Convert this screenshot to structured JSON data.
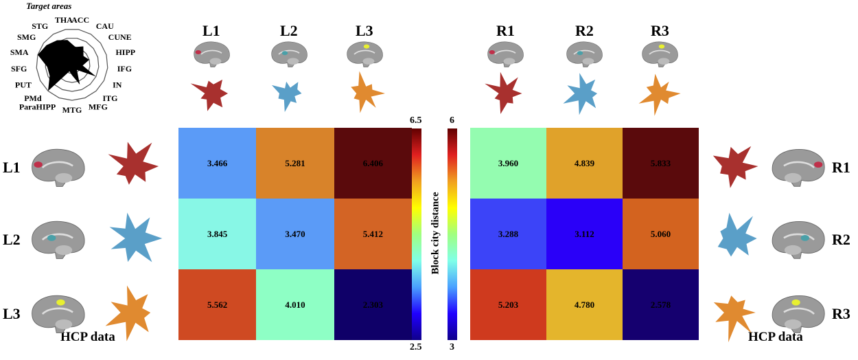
{
  "radar": {
    "title": "Target areas",
    "axes": [
      "ACC",
      "CAU",
      "CUNE",
      "HIPP",
      "IFG",
      "IN",
      "ITG",
      "MFG",
      "MTG",
      "ParaHIPP",
      "PMd",
      "PUT",
      "SFG",
      "SMA",
      "SMG",
      "STG",
      "THA"
    ],
    "values": [
      0.5,
      0.6,
      0.4,
      0.5,
      0.3,
      0.75,
      0.2,
      0.6,
      0.3,
      0.2,
      1.0,
      0.7,
      0.7,
      1.0,
      0.9,
      0.8,
      0.7
    ]
  },
  "top_labels": [
    "L1",
    "L2",
    "L3",
    "R1",
    "R2",
    "R3"
  ],
  "left_labels": [
    "L1",
    "L2",
    "L3"
  ],
  "right_labels": [
    "R1",
    "R2",
    "R3"
  ],
  "region_colors": {
    "1": "#a8302e",
    "2": "#5a9fc8",
    "3": "#e08a30"
  },
  "highlight_colors": {
    "1": "#c0304a",
    "2": "#4aa0a8",
    "3": "#e8f030"
  },
  "footer": {
    "left": "HCP data",
    "right": "HCP data"
  },
  "chart_data": [
    {
      "type": "heatmap",
      "rows": [
        "L1",
        "L2",
        "L3"
      ],
      "columns": [
        "L1",
        "L2",
        "L3"
      ],
      "values": [
        [
          "3.466",
          "5.281",
          "6.406"
        ],
        [
          "3.845",
          "3.470",
          "5.412"
        ],
        [
          "5.562",
          "4.010",
          "2.303"
        ]
      ],
      "colors": [
        [
          "#5b9bf7",
          "#d8832a",
          "#5a0a0c"
        ],
        [
          "#88f7e6",
          "#5b9bf7",
          "#d36425"
        ],
        [
          "#cf4a22",
          "#8effc5",
          "#0f0068"
        ]
      ],
      "colorbar": {
        "min": "2.5",
        "max": "6.5",
        "colormap": "jet"
      }
    },
    {
      "type": "heatmap",
      "rows": [
        "R1",
        "R2",
        "R3"
      ],
      "columns": [
        "R1",
        "R2",
        "R3"
      ],
      "values": [
        [
          "3.960",
          "4.839",
          "5.833"
        ],
        [
          "3.288",
          "3.112",
          "5.060"
        ],
        [
          "5.203",
          "4.780",
          "2.578"
        ]
      ],
      "colors": [
        [
          "#94fcb0",
          "#e0a22a",
          "#5a0a0c"
        ],
        [
          "#3c44f8",
          "#2a00f8",
          "#d3631f"
        ],
        [
          "#cf3a1e",
          "#e4b52c",
          "#15006f"
        ]
      ],
      "colorbar": {
        "min": "3",
        "max": "6",
        "colormap": "jet"
      }
    }
  ],
  "colorbar_label": "Block city distance"
}
